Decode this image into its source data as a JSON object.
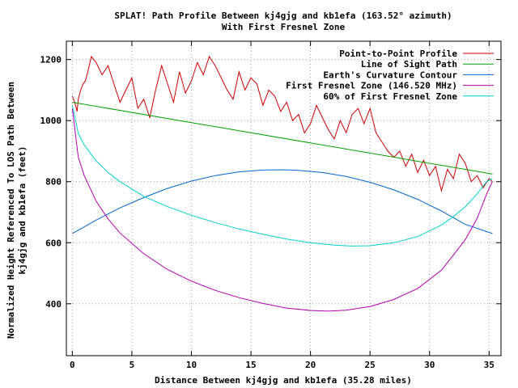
{
  "chart_data": {
    "type": "line",
    "title_line1": "SPLAT! Path Profile Between kj4gjg and kb1efa (163.52° azimuth)",
    "title_line2": "With First Fresnel Zone",
    "xlabel": "Distance Between kj4gjg and kb1efa (35.28 miles)",
    "ylabel_line1": "Normalized Height Referenced To LOS Path Between",
    "ylabel_line2": "kj4gjg and kb1efa (feet)",
    "xlim": [
      -0.5,
      36.0
    ],
    "ylim": [
      230,
      1260
    ],
    "x_ticks": [
      0,
      5,
      10,
      15,
      20,
      25,
      30,
      35
    ],
    "y_ticks": [
      400,
      600,
      800,
      1000,
      1200
    ],
    "grid": true,
    "legend_position": "top-right",
    "series": [
      {
        "name": "Point-to-Point Profile",
        "color": "#cc0000",
        "x": [
          0,
          0.2,
          0.4,
          0.5,
          0.7,
          0.9,
          1.1,
          1.3,
          1.6,
          2.0,
          2.5,
          3.0,
          3.5,
          4.0,
          4.5,
          5.0,
          5.5,
          6.0,
          6.5,
          7.0,
          7.5,
          8.0,
          8.5,
          9.0,
          9.5,
          10.0,
          10.5,
          11.0,
          11.5,
          12.0,
          12.5,
          13.0,
          13.5,
          14.0,
          14.5,
          15.0,
          15.5,
          16.0,
          16.5,
          17.0,
          17.5,
          18.0,
          18.5,
          19.0,
          19.5,
          20.0,
          20.5,
          21.0,
          21.5,
          22.0,
          22.5,
          23.0,
          23.5,
          24.0,
          24.5,
          25.0,
          25.5,
          26.0,
          26.5,
          27.0,
          27.5,
          28.0,
          28.5,
          29.0,
          29.5,
          30.0,
          30.5,
          31.0,
          31.5,
          32.0,
          32.5,
          33.0,
          33.5,
          34.0,
          34.5,
          35.0,
          35.28
        ],
        "y": [
          1080,
          1060,
          1030,
          1070,
          1100,
          1120,
          1130,
          1160,
          1210,
          1190,
          1150,
          1180,
          1120,
          1060,
          1100,
          1140,
          1040,
          1070,
          1010,
          1100,
          1180,
          1120,
          1060,
          1160,
          1090,
          1130,
          1190,
          1150,
          1210,
          1180,
          1140,
          1100,
          1070,
          1160,
          1100,
          1140,
          1120,
          1050,
          1100,
          1080,
          1030,
          1060,
          1000,
          1020,
          960,
          990,
          1050,
          1010,
          970,
          940,
          1000,
          960,
          1020,
          1040,
          990,
          1040,
          960,
          930,
          900,
          880,
          900,
          850,
          890,
          830,
          870,
          820,
          850,
          770,
          840,
          810,
          890,
          860,
          800,
          820,
          780,
          810,
          800
        ]
      },
      {
        "name": "Line of Sight Path",
        "color": "#00a000",
        "x": [
          0,
          35.28
        ],
        "y": [
          1060,
          825
        ]
      },
      {
        "name": "Earth's Curvature Contour",
        "color": "#0066cc",
        "x": [
          0,
          2,
          4,
          6,
          8,
          10,
          12,
          14,
          16,
          17.64,
          19,
          21,
          23,
          25,
          27,
          29,
          31,
          33,
          35.28
        ],
        "y": [
          630,
          674,
          714,
          748,
          778,
          802,
          820,
          832,
          838,
          839,
          837,
          830,
          817,
          798,
          773,
          742,
          704,
          660,
          630
        ]
      },
      {
        "name": "First Fresnel Zone (146.520 MHz)",
        "color": "#b000b0",
        "x": [
          0,
          0.5,
          1,
          2,
          3,
          4,
          6,
          8,
          10,
          12,
          14,
          16,
          18,
          20,
          21.5,
          23,
          25,
          27,
          29,
          31,
          32,
          33,
          34,
          34.8,
          35.28
        ],
        "y": [
          1040,
          880,
          820,
          736,
          678,
          632,
          564,
          512,
          474,
          444,
          420,
          401,
          386,
          378,
          376,
          379,
          391,
          414,
          450,
          510,
          560,
          610,
          680,
          760,
          800
        ]
      },
      {
        "name": "60% of First Fresnel Zone",
        "color": "#00d0d0",
        "x": [
          0,
          0.5,
          1,
          2,
          3,
          4,
          6,
          8,
          10,
          12,
          14,
          16,
          18,
          20,
          22,
          23.5,
          25,
          27,
          29,
          31,
          32,
          33,
          34,
          34.8,
          35.28
        ],
        "y": [
          1050,
          958,
          920,
          868,
          830,
          800,
          752,
          718,
          690,
          666,
          645,
          628,
          612,
          600,
          592,
          589,
          590,
          600,
          620,
          658,
          686,
          718,
          760,
          800,
          810
        ]
      }
    ]
  }
}
